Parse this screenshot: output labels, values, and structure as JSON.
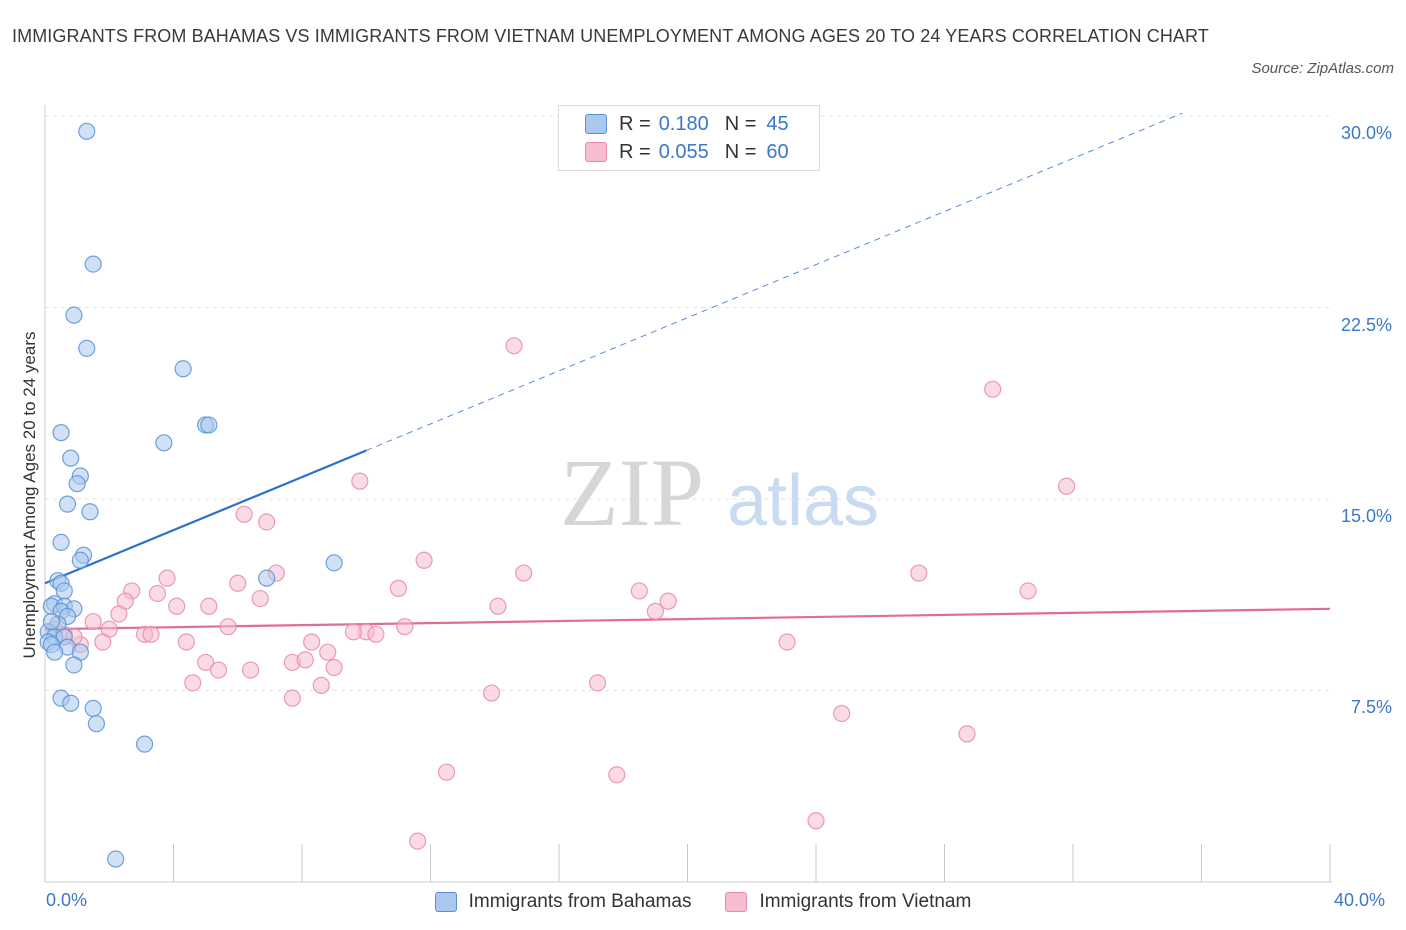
{
  "header": {
    "title": "IMMIGRANTS FROM BAHAMAS VS IMMIGRANTS FROM VIETNAM UNEMPLOYMENT AMONG AGES 20 TO 24 YEARS CORRELATION CHART",
    "source": "Source: ZipAtlas.com"
  },
  "watermark": {
    "zip": "ZIP",
    "atlas": "atlas"
  },
  "legend": {
    "r_label": "R =",
    "n_label": "N =",
    "entries": [
      {
        "name": "Immigrants from Bahamas",
        "r": "0.180",
        "n": "45"
      },
      {
        "name": "Immigrants from Vietnam",
        "r": "0.055",
        "n": "60"
      }
    ]
  },
  "axes": {
    "ylabel": "Unemployment Among Ages 20 to 24 years",
    "x_tick_labels": [
      "0.0%",
      "40.0%"
    ],
    "y_tick_labels": [
      "30.0%",
      "22.5%",
      "15.0%",
      "7.5%"
    ]
  },
  "colors": {
    "bahamas_fill": "#aac8ee",
    "bahamas_stroke": "#5b91d4",
    "bahamas_line": "#2b6fcf",
    "vietnam_fill": "#f6bcd0",
    "vietnam_stroke": "#e88aab",
    "vietnam_line": "#e06d98",
    "tick_text": "#3a78c9"
  },
  "chart_data": {
    "type": "scatter",
    "title": "IMMIGRANTS FROM BAHAMAS VS IMMIGRANTS FROM VIETNAM UNEMPLOYMENT AMONG AGES 20 TO 24 YEARS CORRELATION CHART",
    "xlabel": "",
    "ylabel": "Unemployment Among Ages 20 to 24 years",
    "xlim": [
      0,
      40
    ],
    "ylim": [
      0,
      30
    ],
    "y_ticks": [
      7.5,
      15.0,
      22.5,
      30.0
    ],
    "x_ticks": [
      0,
      4,
      8,
      12,
      16,
      20,
      24,
      28,
      32,
      36,
      40
    ],
    "grid": true,
    "series": [
      {
        "name": "Immigrants from Bahamas",
        "r": 0.18,
        "n": 45,
        "trend": {
          "x0": 0.0,
          "y0": 11.7,
          "x1": 10.0,
          "y1": 16.9,
          "dashed_to_x": 35.4
        },
        "points": [
          [
            1.3,
            29.4
          ],
          [
            1.5,
            24.2
          ],
          [
            0.9,
            22.2
          ],
          [
            1.3,
            20.9
          ],
          [
            4.3,
            20.1
          ],
          [
            5.0,
            17.9
          ],
          [
            5.1,
            17.9
          ],
          [
            0.5,
            17.6
          ],
          [
            3.7,
            17.2
          ],
          [
            0.8,
            16.6
          ],
          [
            1.1,
            15.9
          ],
          [
            1.0,
            15.6
          ],
          [
            0.7,
            14.8
          ],
          [
            1.4,
            14.5
          ],
          [
            0.5,
            13.3
          ],
          [
            1.2,
            12.8
          ],
          [
            1.1,
            12.6
          ],
          [
            9.0,
            12.5
          ],
          [
            6.9,
            11.9
          ],
          [
            0.4,
            11.8
          ],
          [
            0.5,
            11.7
          ],
          [
            0.6,
            11.4
          ],
          [
            0.3,
            10.9
          ],
          [
            0.2,
            10.8
          ],
          [
            0.6,
            10.8
          ],
          [
            0.9,
            10.7
          ],
          [
            0.5,
            10.6
          ],
          [
            0.7,
            10.4
          ],
          [
            0.4,
            10.1
          ],
          [
            0.1,
            9.8
          ],
          [
            0.3,
            9.6
          ],
          [
            0.6,
            9.6
          ],
          [
            0.1,
            9.4
          ],
          [
            0.2,
            9.3
          ],
          [
            0.7,
            9.2
          ],
          [
            1.1,
            9.0
          ],
          [
            0.3,
            9.0
          ],
          [
            0.9,
            8.5
          ],
          [
            0.5,
            7.2
          ],
          [
            0.8,
            7.0
          ],
          [
            1.5,
            6.8
          ],
          [
            1.6,
            6.2
          ],
          [
            3.1,
            5.4
          ],
          [
            2.2,
            0.9
          ],
          [
            0.2,
            10.2
          ]
        ]
      },
      {
        "name": "Immigrants from Vietnam",
        "r": 0.055,
        "n": 60,
        "trend": {
          "x0": 0.0,
          "y0": 9.9,
          "x1": 40.0,
          "y1": 10.7
        },
        "points": [
          [
            14.6,
            21.0
          ],
          [
            29.5,
            19.3
          ],
          [
            9.8,
            15.7
          ],
          [
            31.8,
            15.5
          ],
          [
            6.2,
            14.4
          ],
          [
            6.9,
            14.1
          ],
          [
            11.8,
            12.6
          ],
          [
            14.9,
            12.1
          ],
          [
            7.2,
            12.1
          ],
          [
            27.2,
            12.1
          ],
          [
            3.8,
            11.9
          ],
          [
            6.0,
            11.7
          ],
          [
            11.0,
            11.5
          ],
          [
            2.7,
            11.4
          ],
          [
            18.5,
            11.4
          ],
          [
            30.6,
            11.4
          ],
          [
            3.5,
            11.3
          ],
          [
            6.7,
            11.1
          ],
          [
            19.4,
            11.0
          ],
          [
            2.5,
            11.0
          ],
          [
            4.1,
            10.8
          ],
          [
            5.1,
            10.8
          ],
          [
            14.1,
            10.8
          ],
          [
            19.0,
            10.6
          ],
          [
            2.3,
            10.5
          ],
          [
            1.5,
            10.2
          ],
          [
            5.7,
            10.0
          ],
          [
            11.2,
            10.0
          ],
          [
            2.0,
            9.9
          ],
          [
            10.0,
            9.8
          ],
          [
            9.6,
            9.8
          ],
          [
            10.3,
            9.7
          ],
          [
            3.1,
            9.7
          ],
          [
            3.3,
            9.7
          ],
          [
            0.6,
            9.7
          ],
          [
            1.8,
            9.4
          ],
          [
            4.4,
            9.4
          ],
          [
            8.3,
            9.4
          ],
          [
            23.1,
            9.4
          ],
          [
            1.1,
            9.3
          ],
          [
            8.8,
            9.0
          ],
          [
            5.0,
            8.6
          ],
          [
            7.7,
            8.6
          ],
          [
            8.1,
            8.7
          ],
          [
            9.0,
            8.4
          ],
          [
            5.4,
            8.3
          ],
          [
            6.4,
            8.3
          ],
          [
            4.6,
            7.8
          ],
          [
            8.6,
            7.7
          ],
          [
            17.2,
            7.8
          ],
          [
            13.9,
            7.4
          ],
          [
            7.7,
            7.2
          ],
          [
            24.8,
            6.6
          ],
          [
            28.7,
            5.8
          ],
          [
            12.5,
            4.3
          ],
          [
            17.8,
            4.2
          ],
          [
            24.0,
            2.4
          ],
          [
            11.6,
            1.6
          ],
          [
            0.3,
            9.9
          ],
          [
            0.9,
            9.6
          ]
        ]
      }
    ]
  }
}
